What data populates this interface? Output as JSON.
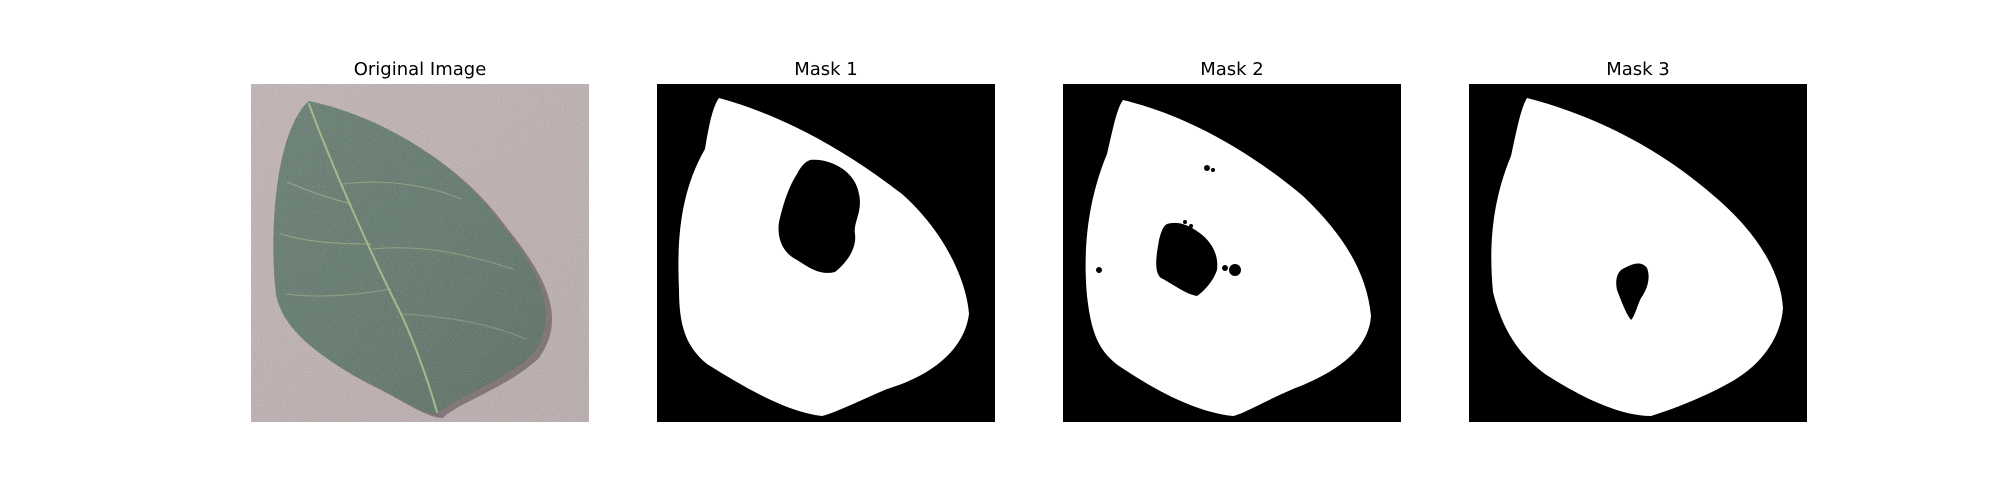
{
  "panels": [
    {
      "title": "Original Image",
      "kind": "photo",
      "subject": "green leaf on a speckled gray-pink surface"
    },
    {
      "title": "Mask 1",
      "kind": "mask"
    },
    {
      "title": "Mask 2",
      "kind": "mask"
    },
    {
      "title": "Mask 3",
      "kind": "mask"
    }
  ],
  "colors": {
    "background": "#ffffff",
    "mask_foreground": "#ffffff",
    "mask_background": "#000000",
    "photo_backdrop": "#b8a9ab",
    "leaf": "#4f6e5e",
    "leaf_vein": "#a6b98a"
  }
}
